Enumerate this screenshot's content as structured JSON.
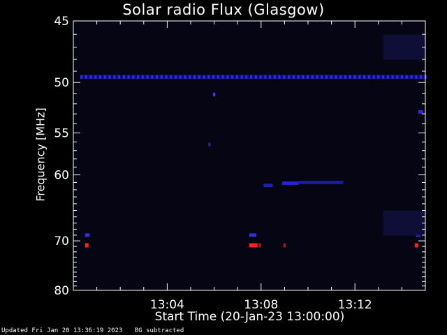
{
  "chart_data": {
    "type": "heatmap",
    "title": "Solar radio Flux (Glasgow)",
    "xlabel": "Start Time (20-Jan-23 13:00:00)",
    "ylabel": "Frequency [MHz]",
    "x_unit": "minutes after 13:00",
    "xlim": [
      0,
      15
    ],
    "ylim": [
      80,
      45
    ],
    "x_ticks": [
      {
        "value": 4,
        "label": "13:04"
      },
      {
        "value": 8,
        "label": "13:08"
      },
      {
        "value": 12,
        "label": "13:12"
      }
    ],
    "y_ticks": [
      {
        "value": 45,
        "label": "45"
      },
      {
        "value": 50,
        "label": "50"
      },
      {
        "value": 55,
        "label": "55"
      },
      {
        "value": 60,
        "label": "60"
      },
      {
        "value": 70,
        "label": "70"
      },
      {
        "value": 80,
        "label": "80"
      }
    ],
    "background_color": "#050514",
    "features": [
      {
        "kind": "continuous_band",
        "freq_mhz": 49.5,
        "t_start": 0.3,
        "t_end": 15,
        "color": "#2a2aff"
      },
      {
        "kind": "blob",
        "freq_mhz": 51.1,
        "t_start": 5.95,
        "t_end": 6.05,
        "color": "#3a3aff"
      },
      {
        "kind": "blob",
        "freq_mhz": 56.3,
        "t_start": 5.75,
        "t_end": 5.85,
        "color": "#24248a"
      },
      {
        "kind": "drift",
        "freq_mhz": 61.4,
        "t_start": 8.1,
        "t_end": 8.5,
        "color": "#1e1eb4"
      },
      {
        "kind": "drift",
        "freq_mhz": 61.1,
        "t_start": 8.9,
        "t_end": 9.6,
        "color": "#2424d0"
      },
      {
        "kind": "drift",
        "freq_mhz": 61.0,
        "t_start": 9.6,
        "t_end": 11.5,
        "color": "#1a1aa0"
      },
      {
        "kind": "blob",
        "freq_mhz": 52.8,
        "t_start": 14.7,
        "t_end": 14.9,
        "color": "#2a2aff"
      },
      {
        "kind": "blob",
        "freq_mhz": 69.0,
        "t_start": 0.5,
        "t_end": 0.7,
        "color": "#3030d0"
      },
      {
        "kind": "blob",
        "freq_mhz": 69.0,
        "t_start": 7.5,
        "t_end": 7.8,
        "color": "#3030d0"
      },
      {
        "kind": "blob",
        "freq_mhz": 69.0,
        "t_start": 14.6,
        "t_end": 14.8,
        "color": "#3030d0"
      },
      {
        "kind": "hot_spot",
        "freq_mhz": 70.8,
        "t_start": 0.5,
        "t_end": 0.65,
        "color": "#ff2020"
      },
      {
        "kind": "hot_spot",
        "freq_mhz": 70.8,
        "t_start": 7.5,
        "t_end": 7.85,
        "color": "#ff2020"
      },
      {
        "kind": "hot_spot",
        "freq_mhz": 70.8,
        "t_start": 7.9,
        "t_end": 8.0,
        "color": "#b01010"
      },
      {
        "kind": "hot_spot",
        "freq_mhz": 70.8,
        "t_start": 8.95,
        "t_end": 9.05,
        "color": "#b01010"
      },
      {
        "kind": "hot_spot",
        "freq_mhz": 70.8,
        "t_start": 14.55,
        "t_end": 14.7,
        "color": "#ff2020"
      },
      {
        "kind": "diffuse_patch",
        "freq_mhz": 47.0,
        "t_start": 13.2,
        "t_end": 15,
        "color": "#101040"
      },
      {
        "kind": "diffuse_patch",
        "freq_mhz": 67.0,
        "t_start": 13.2,
        "t_end": 15,
        "color": "#101040"
      }
    ]
  },
  "footer": {
    "updated": "Updated Fri Jan 20 13:36:19 2023",
    "note": "BG subtracted"
  }
}
